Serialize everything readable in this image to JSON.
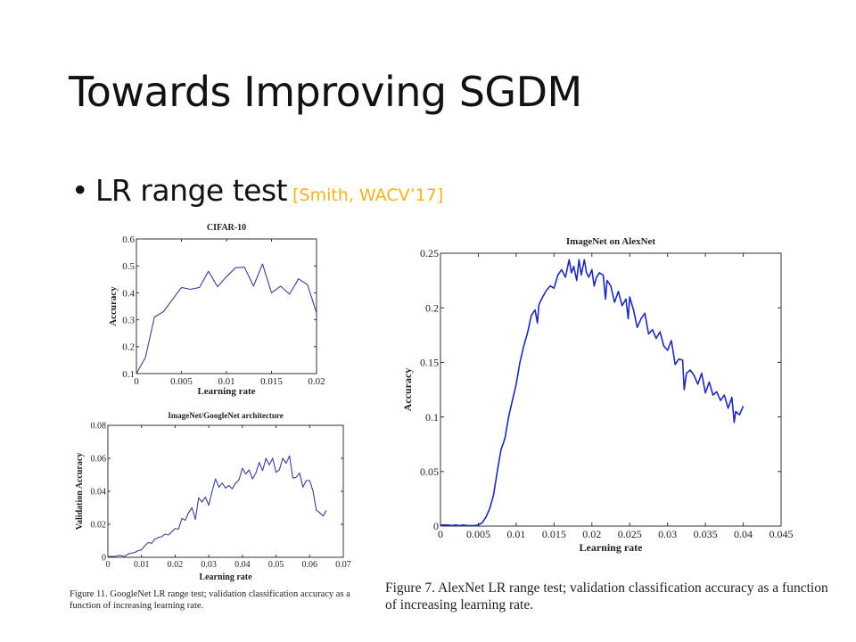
{
  "slide": {
    "title": "Towards Improving SGDM",
    "bullet": "LR range test",
    "bullet_symbol": "•",
    "citation": "[Smith, WACV’17]",
    "citation_color": "#F5B21E"
  },
  "captions": {
    "left": "Figure 11. GoogleNet LR range test; validation classification accuracy as a function of increasing learning rate.",
    "right": "Figure 7. AlexNet LR range test; validation classification accuracy as a function of increasing learning rate."
  },
  "chart_data": [
    {
      "id": "cifar",
      "type": "line",
      "title": "CIFAR-10",
      "xlabel": "Learning rate",
      "ylabel": "Accuracy",
      "xlim": [
        0,
        0.02
      ],
      "ylim": [
        0.1,
        0.6
      ],
      "xticks": [
        0,
        0.005,
        0.01,
        0.015,
        0.02
      ],
      "xtick_labels": [
        "0",
        "0.005",
        "0.01",
        "0.015",
        "0.02"
      ],
      "yticks": [
        0.1,
        0.2,
        0.3,
        0.4,
        0.5,
        0.6
      ],
      "ytick_labels": [
        "0.1",
        "0.2",
        "0.3",
        "0.4",
        "0.5",
        "0.6"
      ],
      "grid": false,
      "line_color": "#3a3f8f",
      "x": [
        0,
        0.001,
        0.002,
        0.003,
        0.004,
        0.005,
        0.006,
        0.007,
        0.008,
        0.009,
        0.01,
        0.011,
        0.012,
        0.013,
        0.014,
        0.015,
        0.016,
        0.017,
        0.018,
        0.019,
        0.02
      ],
      "y": [
        0.1,
        0.16,
        0.31,
        0.33,
        0.375,
        0.42,
        0.413,
        0.42,
        0.48,
        0.423,
        0.46,
        0.493,
        0.495,
        0.425,
        0.507,
        0.4,
        0.425,
        0.395,
        0.452,
        0.43,
        0.325
      ]
    },
    {
      "id": "googlenet",
      "type": "line",
      "title": "ImageNet/GoogleNet architecture",
      "xlabel": "Learning rate",
      "ylabel": "Validation Accuracy",
      "xlim": [
        0,
        0.07
      ],
      "ylim": [
        0,
        0.08
      ],
      "xticks": [
        0,
        0.01,
        0.02,
        0.03,
        0.04,
        0.05,
        0.06,
        0.07
      ],
      "xtick_labels": [
        "0",
        "0.01",
        "0.02",
        "0.03",
        "0.04",
        "0.05",
        "0.06",
        "0.07"
      ],
      "yticks": [
        0,
        0.02,
        0.04,
        0.06,
        0.08
      ],
      "ytick_labels": [
        "0",
        "0.02",
        "0.04",
        "0.06",
        "0.08"
      ],
      "grid": false,
      "line_color": "#3a3f8f",
      "x": [
        0,
        0.001,
        0.002,
        0.003,
        0.004,
        0.005,
        0.006,
        0.007,
        0.008,
        0.009,
        0.01,
        0.011,
        0.012,
        0.013,
        0.014,
        0.015,
        0.016,
        0.017,
        0.018,
        0.019,
        0.02,
        0.021,
        0.022,
        0.023,
        0.024,
        0.025,
        0.026,
        0.027,
        0.028,
        0.029,
        0.03,
        0.031,
        0.032,
        0.033,
        0.034,
        0.035,
        0.036,
        0.037,
        0.038,
        0.039,
        0.04,
        0.041,
        0.042,
        0.043,
        0.044,
        0.045,
        0.046,
        0.047,
        0.048,
        0.049,
        0.05,
        0.051,
        0.052,
        0.053,
        0.054,
        0.055,
        0.056,
        0.057,
        0.058,
        0.059,
        0.06,
        0.061,
        0.062,
        0.063,
        0.064,
        0.065
      ],
      "y": [
        0.0005,
        0.0005,
        0.0005,
        0.001,
        0.001,
        0.0005,
        0.002,
        0.0025,
        0.003,
        0.004,
        0.0045,
        0.007,
        0.009,
        0.0085,
        0.011,
        0.012,
        0.0125,
        0.014,
        0.0135,
        0.0155,
        0.0175,
        0.017,
        0.0235,
        0.0225,
        0.027,
        0.03,
        0.023,
        0.036,
        0.0335,
        0.0365,
        0.0315,
        0.04,
        0.0475,
        0.0425,
        0.045,
        0.042,
        0.0435,
        0.0415,
        0.045,
        0.047,
        0.054,
        0.0505,
        0.053,
        0.0475,
        0.051,
        0.0575,
        0.0525,
        0.06,
        0.056,
        0.06,
        0.0515,
        0.053,
        0.06,
        0.057,
        0.0615,
        0.048,
        0.0485,
        0.051,
        0.0425,
        0.0465,
        0.0465,
        0.04,
        0.0285,
        0.027,
        0.025,
        0.0285
      ]
    },
    {
      "id": "alexnet",
      "type": "line",
      "title": "ImageNet on AlexNet",
      "xlabel": "Learning rate",
      "ylabel": "Accuracy",
      "xlim": [
        0,
        0.045
      ],
      "ylim": [
        0,
        0.25
      ],
      "xticks": [
        0,
        0.005,
        0.01,
        0.015,
        0.02,
        0.025,
        0.03,
        0.035,
        0.04,
        0.045
      ],
      "xtick_labels": [
        "0",
        "0.005",
        "0.01",
        "0.015",
        "0.02",
        "0.025",
        "0.03",
        "0.035",
        "0.04",
        "0.045"
      ],
      "yticks": [
        0,
        0.05,
        0.1,
        0.15,
        0.2,
        0.25
      ],
      "ytick_labels": [
        "0",
        "0.05",
        "0.1",
        "0.15",
        "0.2",
        "0.25"
      ],
      "grid": false,
      "line_color": "#1f2bb5",
      "x": [
        0,
        0.0005,
        0.001,
        0.0015,
        0.002,
        0.0025,
        0.003,
        0.0035,
        0.004,
        0.0045,
        0.005,
        0.0055,
        0.006,
        0.0065,
        0.007,
        0.0075,
        0.008,
        0.0085,
        0.009,
        0.0095,
        0.01,
        0.0105,
        0.011,
        0.0115,
        0.012,
        0.0125,
        0.0128,
        0.013,
        0.0135,
        0.014,
        0.0145,
        0.015,
        0.0155,
        0.016,
        0.0165,
        0.017,
        0.0173,
        0.0176,
        0.018,
        0.0183,
        0.0186,
        0.019,
        0.0193,
        0.0196,
        0.02,
        0.0203,
        0.0206,
        0.021,
        0.0215,
        0.0218,
        0.022,
        0.0225,
        0.023,
        0.0235,
        0.024,
        0.0245,
        0.0248,
        0.025,
        0.0255,
        0.026,
        0.0265,
        0.027,
        0.0275,
        0.028,
        0.0285,
        0.029,
        0.0295,
        0.03,
        0.0305,
        0.031,
        0.0315,
        0.032,
        0.0322,
        0.0325,
        0.033,
        0.0335,
        0.034,
        0.0345,
        0.035,
        0.0355,
        0.036,
        0.0365,
        0.037,
        0.0375,
        0.038,
        0.0385,
        0.0388,
        0.039,
        0.0395,
        0.04
      ],
      "y": [
        0.001,
        0.001,
        0.001,
        0.0005,
        0.001,
        0.0005,
        0.001,
        0.0005,
        0.0005,
        0.0005,
        0.001,
        0.003,
        0.008,
        0.016,
        0.028,
        0.05,
        0.07,
        0.08,
        0.1,
        0.115,
        0.13,
        0.15,
        0.165,
        0.177,
        0.193,
        0.198,
        0.186,
        0.203,
        0.21,
        0.216,
        0.22,
        0.218,
        0.23,
        0.235,
        0.228,
        0.244,
        0.232,
        0.238,
        0.225,
        0.244,
        0.23,
        0.244,
        0.232,
        0.228,
        0.235,
        0.22,
        0.228,
        0.232,
        0.23,
        0.208,
        0.225,
        0.22,
        0.205,
        0.215,
        0.202,
        0.208,
        0.19,
        0.21,
        0.198,
        0.182,
        0.19,
        0.195,
        0.176,
        0.18,
        0.172,
        0.178,
        0.165,
        0.161,
        0.17,
        0.148,
        0.153,
        0.152,
        0.125,
        0.14,
        0.143,
        0.138,
        0.13,
        0.14,
        0.122,
        0.132,
        0.12,
        0.123,
        0.115,
        0.12,
        0.108,
        0.118,
        0.095,
        0.105,
        0.102,
        0.11
      ]
    }
  ]
}
